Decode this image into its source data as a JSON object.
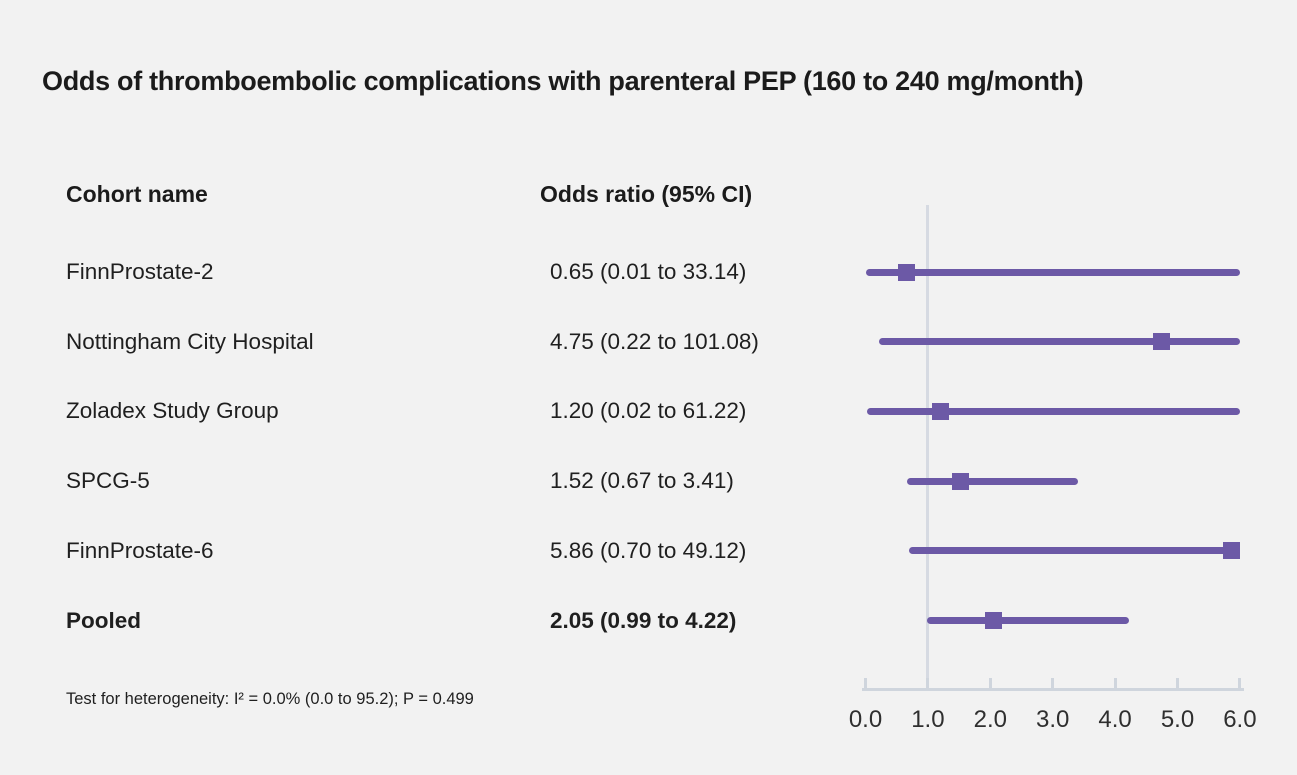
{
  "title": "Odds of thromboembolic complications with parenteral PEP (160 to 240 mg/month)",
  "columns": {
    "cohort": "Cohort name",
    "odds_ratio": "Odds ratio (95% CI)"
  },
  "footnote": "Test for heterogeneity: I² = 0.0% (0.0 to 95.2); P = 0.499",
  "colors": {
    "accent": "#6c59a6",
    "reference_line": "#d6dae2",
    "axis": "#cfd5dd",
    "background": "#f2f2f2",
    "text": "#1b1b1b"
  },
  "chart_data": {
    "type": "scatter",
    "subtype": "forest-plot",
    "title": "Odds of thromboembolic complications with parenteral PEP (160 to 240 mg/month)",
    "xlabel": "",
    "ylabel": "",
    "xlim": [
      0.0,
      6.0
    ],
    "x_tick_labels": [
      "0.0",
      "1.0",
      "2.0",
      "3.0",
      "4.0",
      "5.0",
      "6.0"
    ],
    "x_tick_values": [
      0,
      1,
      2,
      3,
      4,
      5,
      6
    ],
    "reference_line_x": 1.0,
    "grid": false,
    "legend": false,
    "rows": [
      {
        "name": "FinnProstate-2",
        "or": 0.65,
        "ci_low": 0.01,
        "ci_high": 33.14,
        "label": "0.65 (0.01 to 33.14)",
        "bold": false
      },
      {
        "name": "Nottingham City Hospital",
        "or": 4.75,
        "ci_low": 0.22,
        "ci_high": 101.08,
        "label": "4.75 (0.22 to 101.08)",
        "bold": false
      },
      {
        "name": "Zoladex Study Group",
        "or": 1.2,
        "ci_low": 0.02,
        "ci_high": 61.22,
        "label": "1.20 (0.02 to 61.22)",
        "bold": false
      },
      {
        "name": "SPCG-5",
        "or": 1.52,
        "ci_low": 0.67,
        "ci_high": 3.41,
        "label": "1.52 (0.67 to 3.41)",
        "bold": false
      },
      {
        "name": "FinnProstate-6",
        "or": 5.86,
        "ci_low": 0.7,
        "ci_high": 49.12,
        "label": "5.86 (0.70 to 49.12)",
        "bold": false
      },
      {
        "name": "Pooled",
        "or": 2.05,
        "ci_low": 0.99,
        "ci_high": 4.22,
        "label": "2.05 (0.99 to 4.22)",
        "bold": true
      }
    ],
    "heterogeneity_note": "Test for heterogeneity: I² = 0.0% (0.0 to 95.2); P = 0.499"
  }
}
